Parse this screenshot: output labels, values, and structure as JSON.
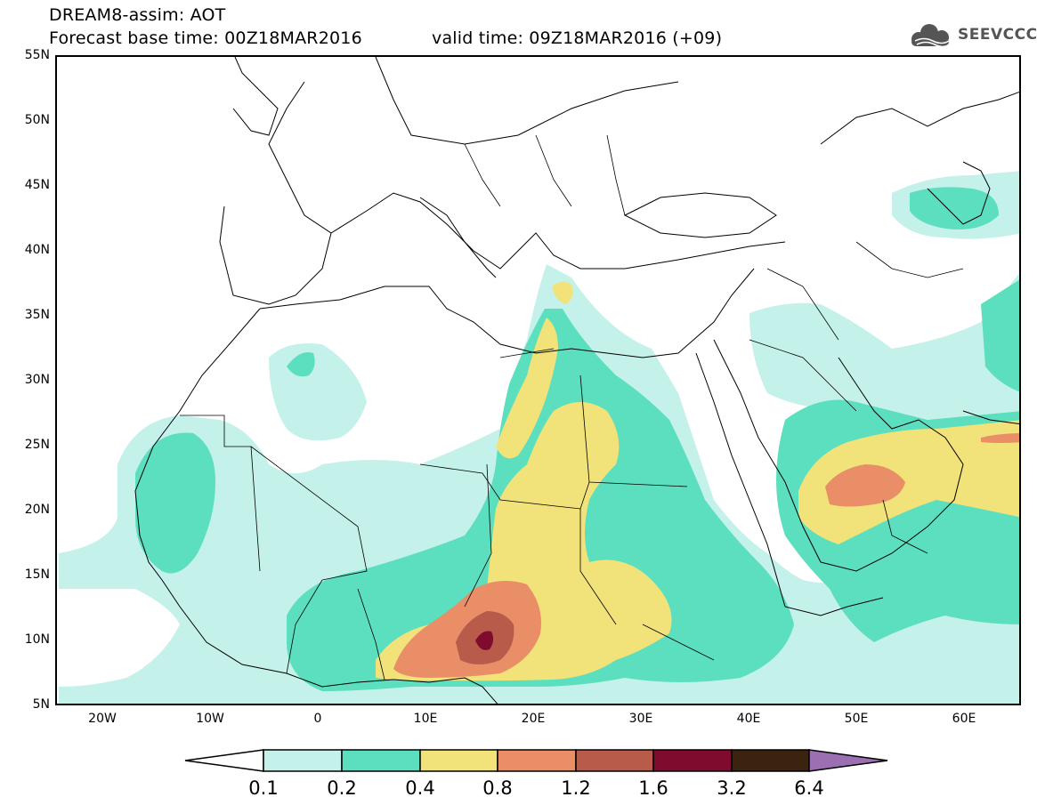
{
  "header": {
    "title": "DREAM8-assim: AOT",
    "base_time": "Forecast base time: 00Z18MAR2016",
    "valid_time": "valid time: 09Z18MAR2016 (+09)",
    "logo_text": "SEEVCCC"
  },
  "map": {
    "variable": "AOT",
    "projection": "lat-lon",
    "lon_range": [
      -25,
      65
    ],
    "lat_range": [
      5,
      55
    ],
    "lat_labels": [
      "55N",
      "50N",
      "45N",
      "40N",
      "35N",
      "30N",
      "25N",
      "20N",
      "15N",
      "10N",
      "5N"
    ],
    "lon_labels": [
      "20W",
      "10W",
      "0",
      "10E",
      "20E",
      "30E",
      "40E",
      "50E",
      "60E"
    ],
    "colors": {
      "c1": "#c4f1ea",
      "c2": "#5cdfbe",
      "c3": "#f2e27a",
      "c4": "#e98e67",
      "c5": "#b85b4b",
      "c6": "#7f0b2e",
      "c7": "#3b2310",
      "c8": "#9b6fb2"
    }
  },
  "colorbar": {
    "labels": [
      "0.1",
      "0.2",
      "0.4",
      "0.8",
      "1.2",
      "1.6",
      "3.2",
      "6.4"
    ],
    "colors": [
      "#ffffff",
      "#c4f1ea",
      "#5cdfbe",
      "#f2e27a",
      "#e98e67",
      "#b85b4b",
      "#7f0b2e",
      "#3b2310",
      "#9b6fb2"
    ]
  }
}
